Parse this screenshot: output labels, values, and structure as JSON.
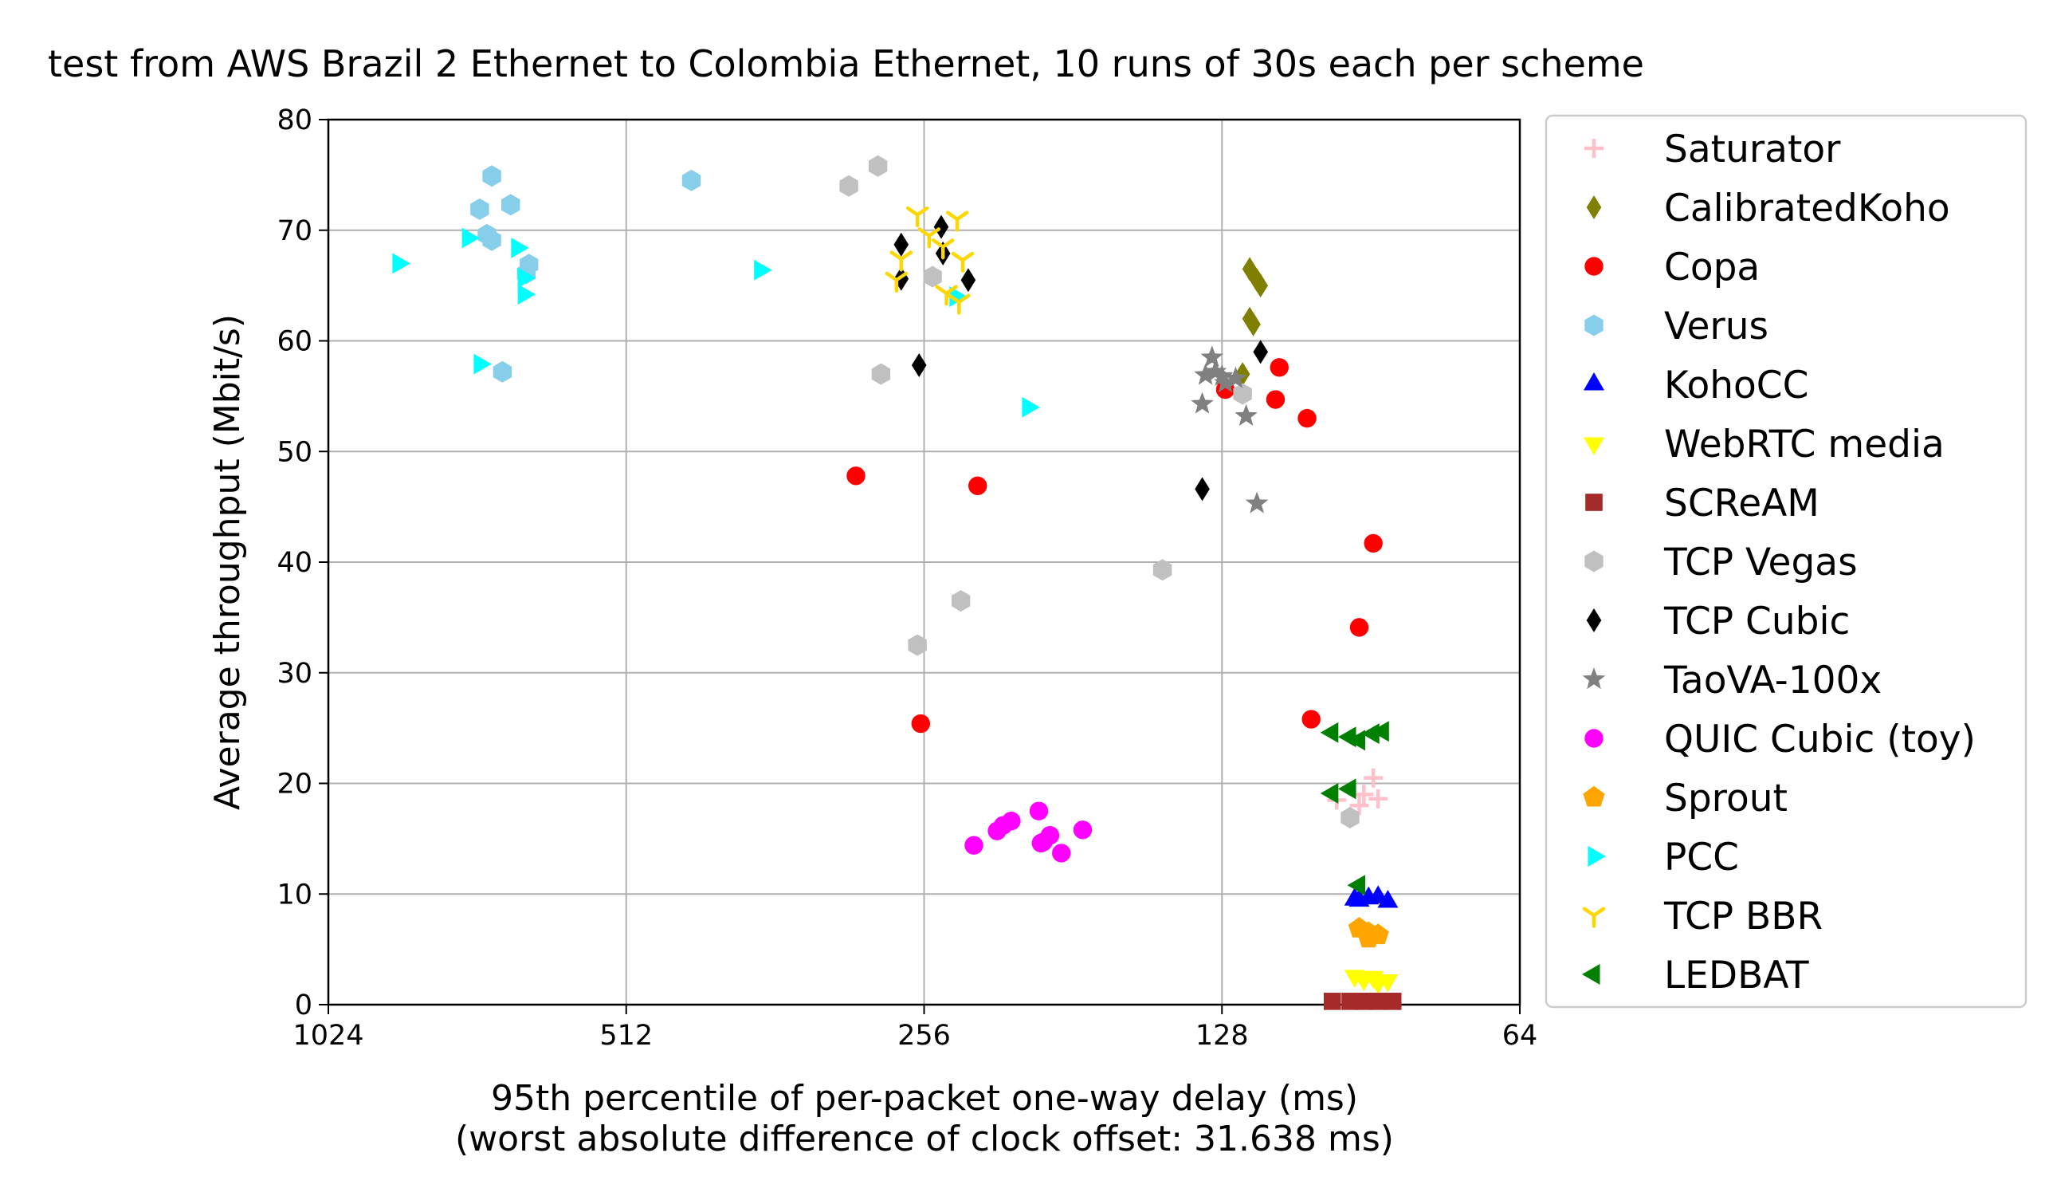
{
  "chart_data": {
    "type": "scatter",
    "title": "test from AWS Brazil 2 Ethernet to Colombia Ethernet, 10 runs of 30s each per scheme",
    "xlabel": "95th percentile of per-packet one-way delay (ms)",
    "xlabel2": "(worst absolute difference of clock offset: 31.638 ms)",
    "ylabel": "Average throughput (Mbit/s)",
    "x_scale": "log2",
    "x_inverted": true,
    "xlim": [
      1024,
      64
    ],
    "ylim": [
      0,
      80
    ],
    "x_ticks": [
      1024,
      512,
      256,
      128,
      64
    ],
    "y_ticks": [
      0,
      10,
      20,
      30,
      40,
      50,
      60,
      70,
      80
    ],
    "grid": true,
    "legend_position": "outside-right",
    "series": [
      {
        "name": "Saturator",
        "color": "#ffc0cb",
        "marker": "plus",
        "points": [
          [
            98,
            18.5
          ],
          [
            92,
            19
          ],
          [
            90,
            20.5
          ],
          [
            89,
            18.6
          ],
          [
            93,
            18
          ]
        ]
      },
      {
        "name": "CalibratedKoho",
        "color": "#808000",
        "marker": "diamond",
        "points": [
          [
            120,
            66.5
          ],
          [
            118,
            65.5
          ],
          [
            117,
            65
          ],
          [
            120,
            62
          ],
          [
            119,
            61.5
          ],
          [
            122,
            57
          ]
        ]
      },
      {
        "name": "Copa",
        "color": "#ff0000",
        "marker": "circle",
        "points": [
          [
            300,
            47.8
          ],
          [
            226,
            46.9
          ],
          [
            258,
            25.4
          ],
          [
            127,
            55.6
          ],
          [
            112,
            57.6
          ],
          [
            113,
            54.7
          ],
          [
            105,
            53
          ],
          [
            90,
            41.7
          ],
          [
            93,
            34.1
          ],
          [
            104,
            25.8
          ]
        ]
      },
      {
        "name": "Verus",
        "color": "#87ceeb",
        "marker": "hexagon",
        "points": [
          [
            700,
            74.9
          ],
          [
            670,
            72.3
          ],
          [
            720,
            71.9
          ],
          [
            708,
            69.6
          ],
          [
            700,
            69.1
          ],
          [
            642,
            66.9
          ],
          [
            646,
            66.1
          ],
          [
            683,
            57.2
          ],
          [
            440,
            74.5
          ]
        ]
      },
      {
        "name": "KohoCC",
        "color": "#0000ff",
        "marker": "triangle-up",
        "points": [
          [
            94,
            9.5
          ],
          [
            91,
            9.6
          ],
          [
            87,
            9.3
          ],
          [
            93,
            9.4
          ],
          [
            89,
            9.7
          ]
        ]
      },
      {
        "name": "WebRTC media",
        "color": "#ffff00",
        "marker": "triangle-down",
        "points": [
          [
            94,
            2.6
          ],
          [
            92,
            2.3
          ],
          [
            87,
            2.2
          ],
          [
            90,
            2.5
          ],
          [
            89,
            2.0
          ]
        ]
      },
      {
        "name": "SCReAM",
        "color": "#a52a2a",
        "marker": "square",
        "points": [
          [
            99,
            0.3
          ],
          [
            95,
            0.3
          ],
          [
            92,
            0.3
          ],
          [
            89,
            0.3
          ],
          [
            86,
            0.3
          ]
        ]
      },
      {
        "name": "TCP Vegas",
        "color": "#c0c0c0",
        "marker": "hexagon",
        "points": [
          [
            305,
            74
          ],
          [
            285,
            75.8
          ],
          [
            283,
            57
          ],
          [
            251,
            65.8
          ],
          [
            260,
            32.5
          ],
          [
            235,
            36.5
          ],
          [
            147,
            39.3
          ],
          [
            122,
            55.2
          ],
          [
            95,
            16.9
          ]
        ]
      },
      {
        "name": "TCP Cubic",
        "color": "#000000",
        "marker": "diamond",
        "points": [
          [
            270,
            68.7
          ],
          [
            270,
            65.6
          ],
          [
            246,
            70.3
          ],
          [
            245,
            67.9
          ],
          [
            231,
            65.5
          ],
          [
            259,
            57.8
          ],
          [
            134,
            46.6
          ],
          [
            117,
            59
          ]
        ]
      },
      {
        "name": "TaoVA-100x",
        "color": "#808080",
        "marker": "star",
        "points": [
          [
            134,
            54.3
          ],
          [
            133,
            56.9
          ],
          [
            131,
            58.5
          ],
          [
            130,
            57.2
          ],
          [
            128,
            56.8
          ],
          [
            127,
            56.2
          ],
          [
            124,
            56.6
          ],
          [
            121,
            53.2
          ],
          [
            118,
            45.3
          ]
        ]
      },
      {
        "name": "QUIC Cubic (toy)",
        "color": "#ff00ff",
        "marker": "circle",
        "points": [
          [
            228,
            14.4
          ],
          [
            216,
            15.7
          ],
          [
            213,
            16.2
          ],
          [
            209,
            16.6
          ],
          [
            196,
            17.5
          ],
          [
            194,
            14.7
          ],
          [
            191,
            15.3
          ],
          [
            186,
            13.7
          ],
          [
            177,
            15.8
          ],
          [
            195,
            14.6
          ]
        ]
      },
      {
        "name": "Sprout",
        "color": "#ffa500",
        "marker": "pentagon",
        "points": [
          [
            91,
            6.5
          ],
          [
            89,
            6.3
          ],
          [
            93,
            6.9
          ],
          [
            91,
            6.0
          ]
        ]
      },
      {
        "name": "PCC",
        "color": "#00ffff",
        "marker": "triangle-right",
        "points": [
          [
            870,
            67
          ],
          [
            740,
            69.3
          ],
          [
            720,
            57.9
          ],
          [
            660,
            68.4
          ],
          [
            650,
            65.7
          ],
          [
            650,
            64.2
          ],
          [
            375,
            66.4
          ],
          [
            238,
            64
          ],
          [
            201,
            54
          ]
        ]
      },
      {
        "name": "TCP BBR",
        "color": "#ffd700",
        "marker": "tri-down",
        "points": [
          [
            260,
            71.4
          ],
          [
            253,
            69.5
          ],
          [
            237,
            71
          ],
          [
            270,
            67.4
          ],
          [
            273,
            65.5
          ],
          [
            245,
            68.5
          ],
          [
            243,
            64.3
          ],
          [
            236,
            63.5
          ],
          [
            234,
            67.3
          ]
        ]
      },
      {
        "name": "LEDBAT",
        "color": "#008000",
        "marker": "triangle-left",
        "points": [
          [
            99,
            24.6
          ],
          [
            95,
            24.2
          ],
          [
            93,
            23.9
          ],
          [
            90,
            24.5
          ],
          [
            88,
            24.7
          ],
          [
            99,
            19.1
          ],
          [
            95,
            19.5
          ],
          [
            93,
            10.8
          ]
        ]
      }
    ]
  }
}
